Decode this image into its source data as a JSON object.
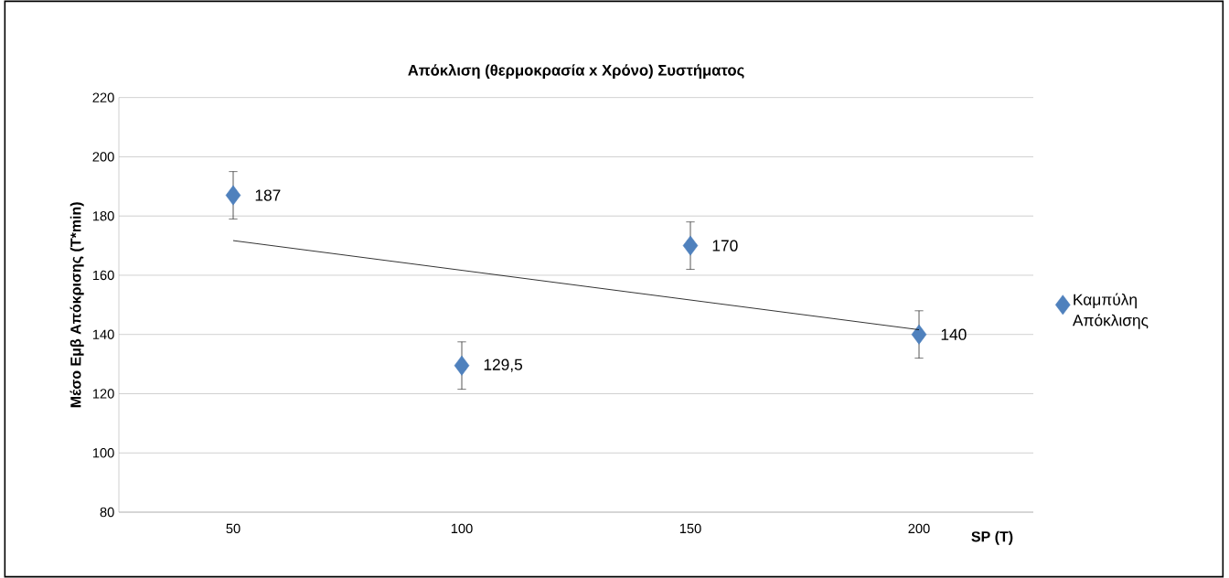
{
  "chart_data": {
    "type": "scatter",
    "title": "Απόκλιση (θερμοκρασία x Χρόνο) Συστήματος",
    "xlabel": "SP (T)",
    "ylabel": "Μέσο Εμβ Απόκρισης (T*min)",
    "x": [
      50,
      100,
      150,
      200
    ],
    "xlim": [
      25,
      225
    ],
    "xticks": [
      50,
      100,
      150,
      200
    ],
    "ylim": [
      80,
      220
    ],
    "yticks": [
      80,
      100,
      120,
      140,
      160,
      180,
      200,
      220
    ],
    "grid": "y",
    "legend": "right",
    "series": [
      {
        "name": "Καμπύλη Απόκλισης",
        "color": "#4f81bd",
        "values": [
          187,
          129.5,
          170,
          140
        ],
        "marker": "diamond",
        "errors": [
          8,
          8,
          8,
          8
        ],
        "value_labels": [
          "187",
          "129,5",
          "170",
          "140"
        ]
      },
      {
        "type": "line",
        "color": "#000000",
        "marker": "none",
        "x": [
          50,
          200
        ],
        "values": [
          171.7,
          141.6
        ]
      }
    ]
  }
}
